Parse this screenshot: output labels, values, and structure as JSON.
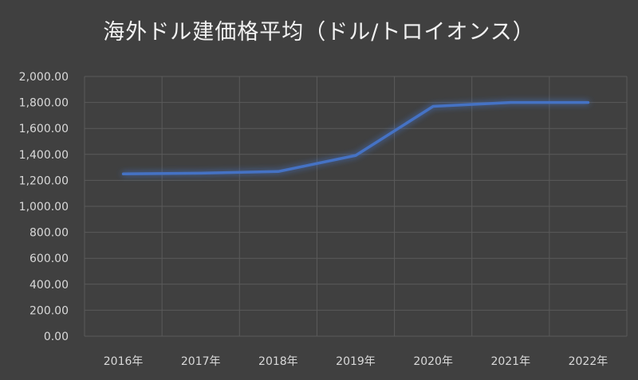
{
  "chart_data": {
    "type": "line",
    "title": "海外ドル建価格平均（ドル/トロイオンス）",
    "categories": [
      "2016年",
      "2017年",
      "2018年",
      "2019年",
      "2020年",
      "2021年",
      "2022年"
    ],
    "series": [
      {
        "values": [
          1250,
          1255,
          1268,
          1392,
          1770,
          1800,
          1800
        ],
        "color": "#4472c4"
      }
    ],
    "ylim": [
      0,
      2000
    ],
    "yticks": [
      0,
      200,
      400,
      600,
      800,
      1000,
      1200,
      1400,
      1600,
      1800,
      2000
    ],
    "ytick_labels": [
      "0.00",
      "200.00",
      "400.00",
      "600.00",
      "800.00",
      "1,000.00",
      "1,200.00",
      "1,400.00",
      "1,600.00",
      "1,800.00",
      "2,000.00"
    ],
    "grid": true,
    "legend": "none",
    "background": "#404040",
    "grid_color": "#5a5a5a"
  }
}
